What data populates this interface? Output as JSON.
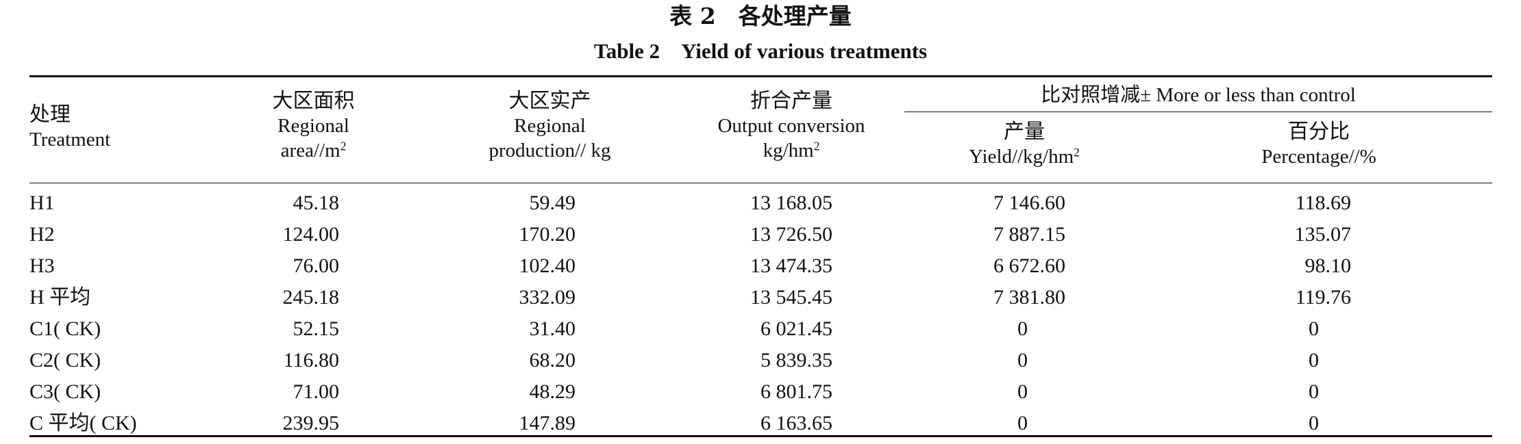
{
  "caption": {
    "title_cn": "表 2　各处理产量",
    "title_en": "Table 2　Yield of various treatments"
  },
  "headers": {
    "treatment": {
      "cn": "处理",
      "en": "Treatment"
    },
    "regional_area": {
      "cn": "大区面积",
      "en1": "Regional",
      "en2": "area//m",
      "sup": "2"
    },
    "regional_production": {
      "cn": "大区实产",
      "en1": "Regional",
      "en2": "production// kg"
    },
    "output_conversion": {
      "cn": "折合产量",
      "en1": "Output conversion",
      "en2": "kg/hm",
      "sup": "2"
    },
    "comparison_group": "比对照增减± More or less than control",
    "yield": {
      "cn": "产量",
      "en": "Yield//kg/hm",
      "sup": "2"
    },
    "percentage": {
      "cn": "百分比",
      "en": "Percentage//%"
    }
  },
  "rows": [
    {
      "treatment": "H1",
      "area": "45.18",
      "production": "59.49",
      "conversion": "13 168.05",
      "yield": "7 146.60",
      "percentage": "118.69"
    },
    {
      "treatment": "H2",
      "area": "124.00",
      "production": "170.20",
      "conversion": "13 726.50",
      "yield": "7 887.15",
      "percentage": "135.07"
    },
    {
      "treatment": "H3",
      "area": "76.00",
      "production": "102.40",
      "conversion": "13 474.35",
      "yield": "6 672.60",
      "percentage": "98.10"
    },
    {
      "treatment": "H 平均",
      "area": "245.18",
      "production": "332.09",
      "conversion": "13 545.45",
      "yield": "7 381.80",
      "percentage": "119.76"
    },
    {
      "treatment": "C1( CK)",
      "area": "52.15",
      "production": "31.40",
      "conversion": "6 021.45",
      "yield": "0",
      "percentage": "0"
    },
    {
      "treatment": "C2( CK)",
      "area": "116.80",
      "production": "68.20",
      "conversion": "5 839.35",
      "yield": "0",
      "percentage": "0"
    },
    {
      "treatment": "C3( CK)",
      "area": "71.00",
      "production": "48.29",
      "conversion": "6 801.75",
      "yield": "0",
      "percentage": "0"
    },
    {
      "treatment": "C 平均( CK)",
      "area": "239.95",
      "production": "147.89",
      "conversion": "6 163.65",
      "yield": "0",
      "percentage": "0"
    }
  ]
}
